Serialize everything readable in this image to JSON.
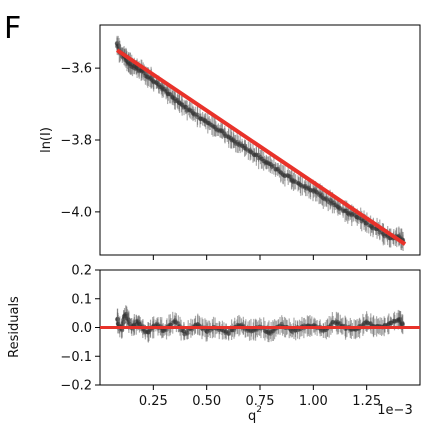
{
  "panel_label": "F",
  "chart_data": [
    {
      "type": "scatter",
      "title": "",
      "xlabel": "",
      "ylabel": "ln(I)",
      "xlim": [
        0.0,
        1.5
      ],
      "ylim": [
        -4.12,
        -3.48
      ],
      "yticks": [
        -3.6,
        -3.8,
        -4.0
      ],
      "ytick_labels": [
        "−3.6",
        "−3.8",
        "−4.0"
      ],
      "xticks": [
        0.25,
        0.5,
        0.75,
        1.0,
        1.25
      ],
      "xtick_labels_shown": false,
      "grid": false,
      "series": [
        {
          "type": "scatter",
          "color": "#555555",
          "error_bars": true,
          "points_sampled": [
            [
              0.08,
              -3.53
            ],
            [
              0.1,
              -3.56
            ],
            [
              0.12,
              -3.57
            ],
            [
              0.14,
              -3.59
            ],
            [
              0.17,
              -3.6
            ],
            [
              0.2,
              -3.61
            ],
            [
              0.24,
              -3.63
            ],
            [
              0.28,
              -3.65
            ],
            [
              0.32,
              -3.67
            ],
            [
              0.36,
              -3.69
            ],
            [
              0.4,
              -3.71
            ],
            [
              0.45,
              -3.73
            ],
            [
              0.5,
              -3.75
            ],
            [
              0.55,
              -3.77
            ],
            [
              0.6,
              -3.79
            ],
            [
              0.65,
              -3.81
            ],
            [
              0.7,
              -3.83
            ],
            [
              0.75,
              -3.85
            ],
            [
              0.8,
              -3.87
            ],
            [
              0.85,
              -3.89
            ],
            [
              0.9,
              -3.91
            ],
            [
              0.95,
              -3.93
            ],
            [
              1.0,
              -3.94
            ],
            [
              1.05,
              -3.96
            ],
            [
              1.1,
              -3.98
            ],
            [
              1.15,
              -4.0
            ],
            [
              1.2,
              -4.01
            ],
            [
              1.25,
              -4.03
            ],
            [
              1.3,
              -4.05
            ],
            [
              1.35,
              -4.07
            ],
            [
              1.4,
              -4.07
            ],
            [
              1.42,
              -4.08
            ]
          ]
        },
        {
          "type": "line",
          "color": "#e8322a",
          "x": [
            0.08,
            1.43
          ],
          "y": [
            -3.55,
            -4.09
          ]
        }
      ]
    },
    {
      "type": "scatter",
      "title": "",
      "xlabel": "q",
      "xlabel_superscript": "2",
      "x_offset_text": "1e−3",
      "ylabel": "Residuals",
      "xlim": [
        0.0,
        1.5
      ],
      "ylim": [
        -0.2,
        0.2
      ],
      "yticks": [
        0.2,
        0.1,
        0.0,
        -0.1,
        -0.2
      ],
      "ytick_labels": [
        "0.2",
        "0.1",
        "0.0",
        "−0.1",
        "−0.2"
      ],
      "xticks": [
        0.25,
        0.5,
        0.75,
        1.0,
        1.25
      ],
      "xtick_labels": [
        "0.25",
        "0.50",
        "0.75",
        "1.00",
        "1.25"
      ],
      "grid": false,
      "series": [
        {
          "type": "scatter",
          "color": "#555555",
          "error_bars": true,
          "points_sampled": [
            [
              0.08,
              0.03
            ],
            [
              0.1,
              -0.01
            ],
            [
              0.12,
              0.05
            ],
            [
              0.15,
              0.0
            ],
            [
              0.18,
              0.02
            ],
            [
              0.22,
              -0.02
            ],
            [
              0.26,
              0.01
            ],
            [
              0.3,
              -0.01
            ],
            [
              0.35,
              0.02
            ],
            [
              0.4,
              -0.02
            ],
            [
              0.45,
              0.01
            ],
            [
              0.5,
              -0.01
            ],
            [
              0.55,
              0.0
            ],
            [
              0.6,
              -0.02
            ],
            [
              0.65,
              0.01
            ],
            [
              0.7,
              -0.01
            ],
            [
              0.75,
              0.0
            ],
            [
              0.8,
              -0.02
            ],
            [
              0.85,
              0.01
            ],
            [
              0.9,
              -0.01
            ],
            [
              0.95,
              0.0
            ],
            [
              1.0,
              0.01
            ],
            [
              1.05,
              -0.01
            ],
            [
              1.1,
              0.02
            ],
            [
              1.15,
              0.0
            ],
            [
              1.2,
              -0.01
            ],
            [
              1.25,
              0.02
            ],
            [
              1.3,
              0.0
            ],
            [
              1.35,
              0.01
            ],
            [
              1.4,
              0.03
            ],
            [
              1.42,
              0.01
            ]
          ]
        },
        {
          "type": "hline",
          "color": "#e8322a",
          "y": 0.0
        }
      ]
    }
  ]
}
